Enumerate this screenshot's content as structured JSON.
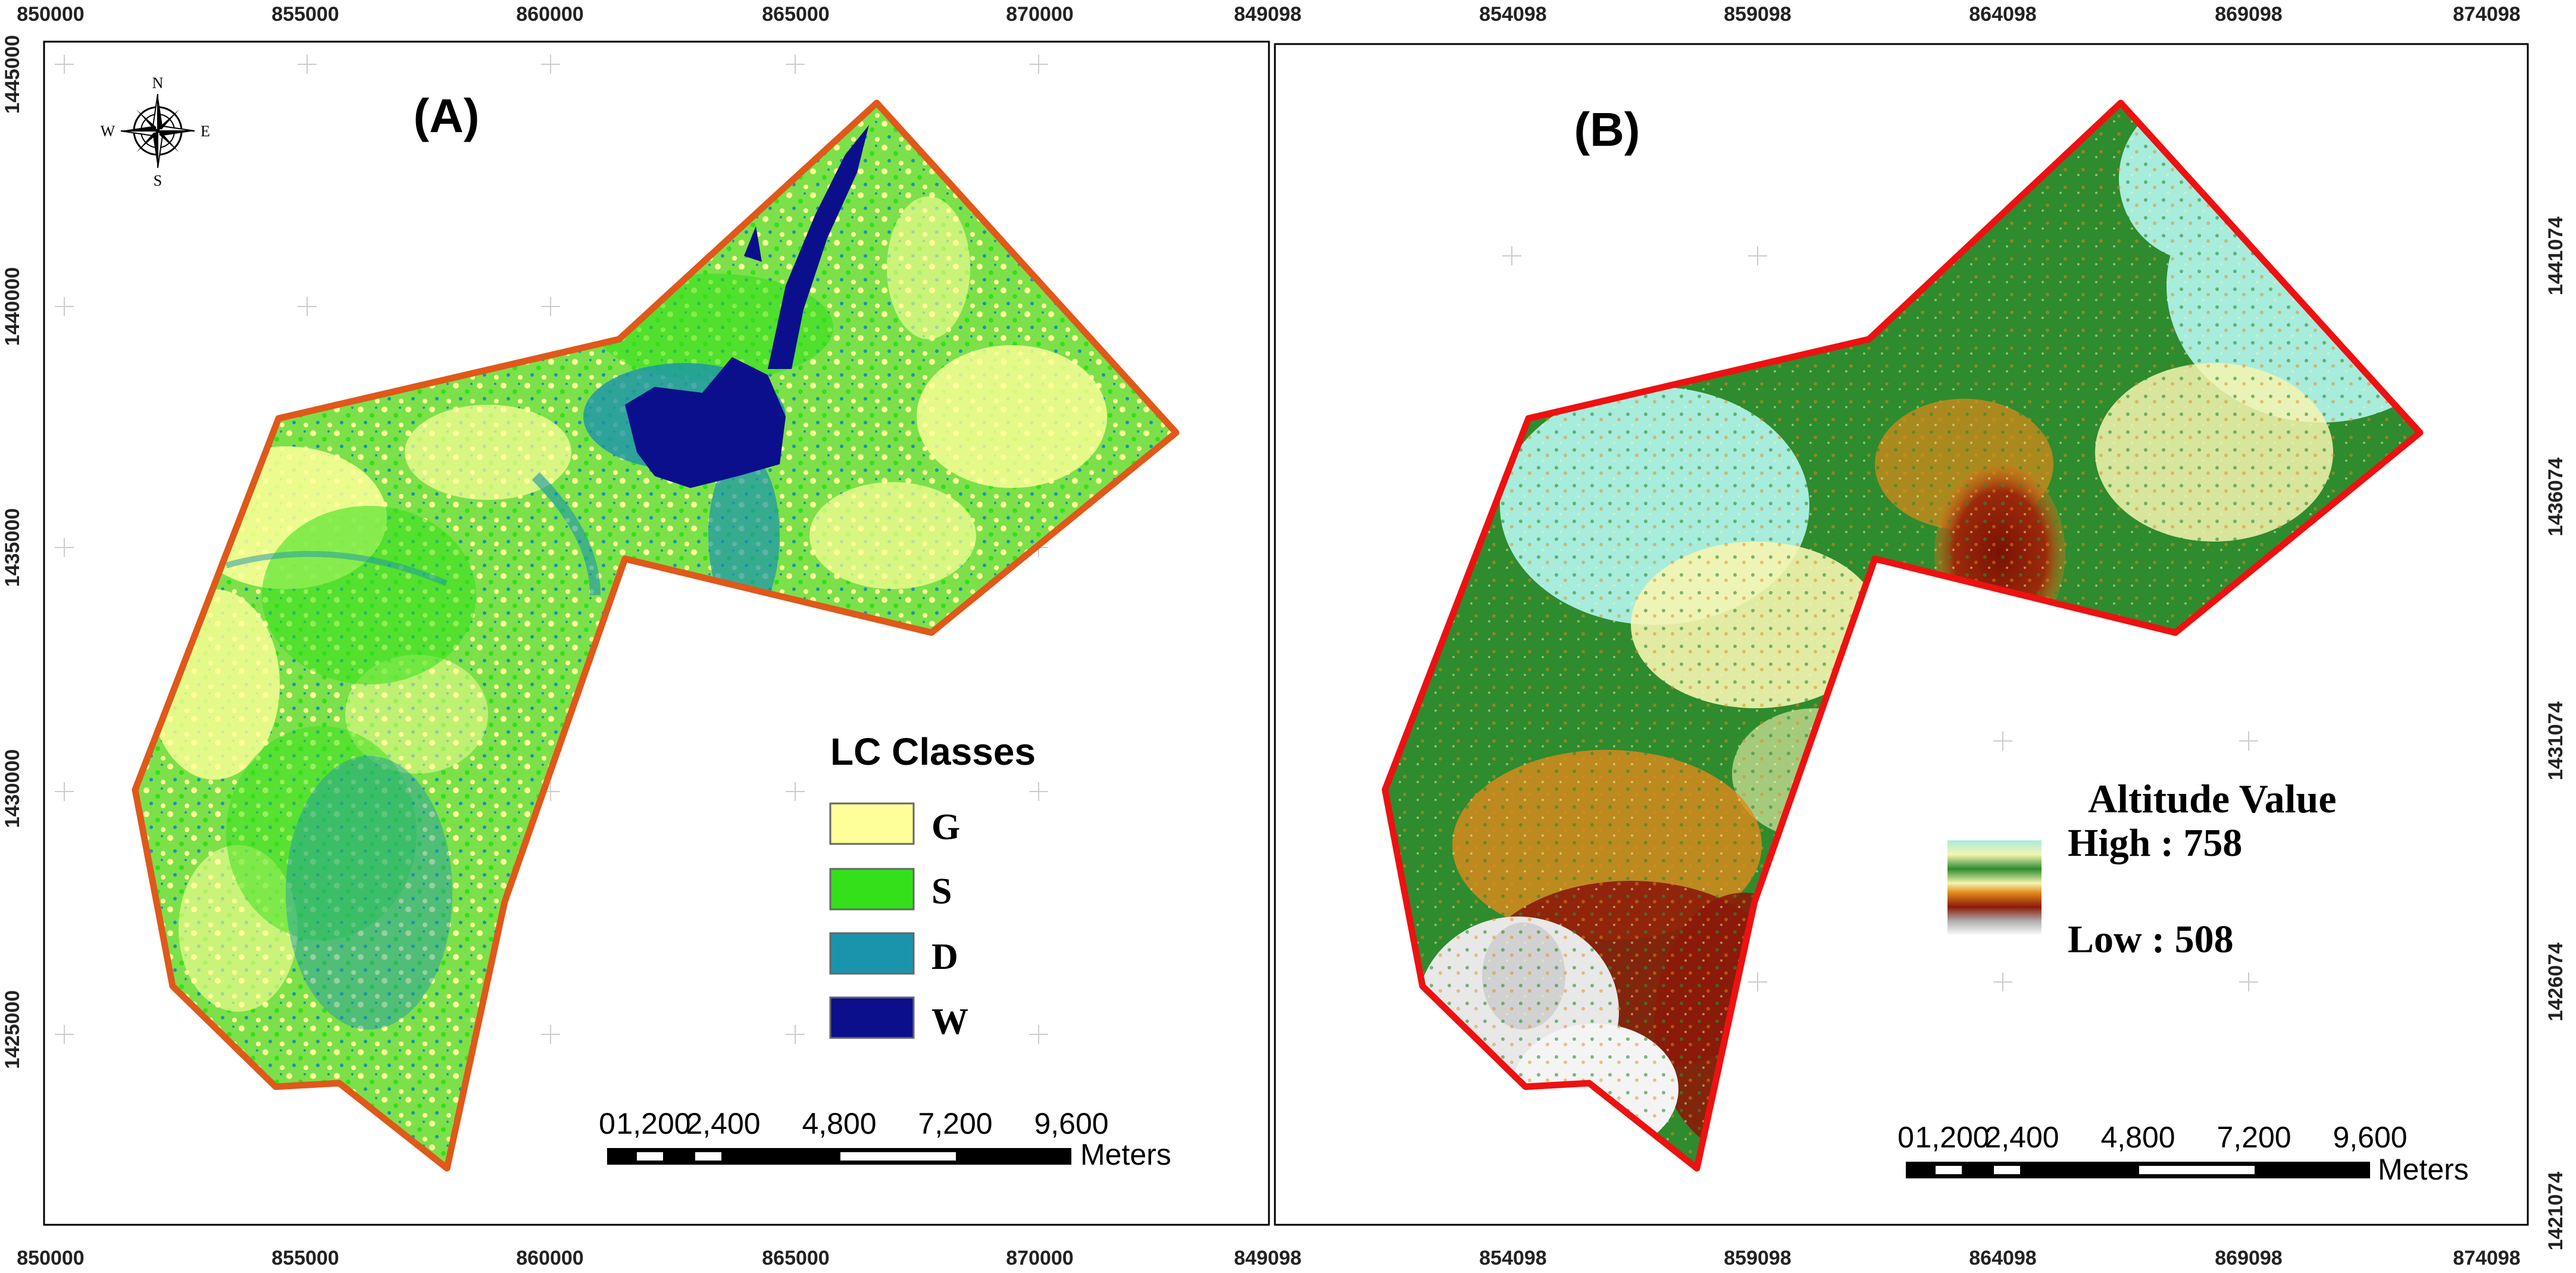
{
  "panel_a": {
    "title": "(A)",
    "x_ticks": [
      "850000",
      "855000",
      "860000",
      "865000",
      "870000"
    ],
    "y_ticks": [
      "1445000",
      "1440000",
      "1435000",
      "1430000",
      "1425000"
    ],
    "compass": {
      "n": "N",
      "s": "S",
      "e": "E",
      "w": "W"
    },
    "legend": {
      "title": "LC Classes",
      "items": [
        {
          "label": "G",
          "color": "#ffff99"
        },
        {
          "label": "S",
          "color": "#33e01a"
        },
        {
          "label": "D",
          "color": "#1a94ad"
        },
        {
          "label": "W",
          "color": "#0b0f8c"
        }
      ]
    },
    "scale": {
      "labels": [
        "0",
        "1,200",
        "2,400",
        "4,800",
        "7,200",
        "9,600"
      ],
      "unit": "Meters"
    },
    "boundary_color": "#e0581a"
  },
  "panel_b": {
    "title": "(B)",
    "x_ticks": [
      "849098",
      "854098",
      "859098",
      "864098",
      "869098",
      "874098"
    ],
    "y_ticks": [
      "1441074",
      "1436074",
      "1431074",
      "1426074",
      "1421074"
    ],
    "legend": {
      "title": "Altitude Value",
      "high": "High : 758",
      "low": "Low : 508",
      "colors": [
        "#a8ecdc",
        "#f5f5b0",
        "#2e8b2e",
        "#e08a1a",
        "#8b1a0a",
        "#ffffff"
      ]
    },
    "scale": {
      "labels": [
        "0",
        "1,200",
        "2,400",
        "4,800",
        "7,200",
        "9,600"
      ],
      "unit": "Meters"
    },
    "boundary_color": "#ee1111"
  }
}
